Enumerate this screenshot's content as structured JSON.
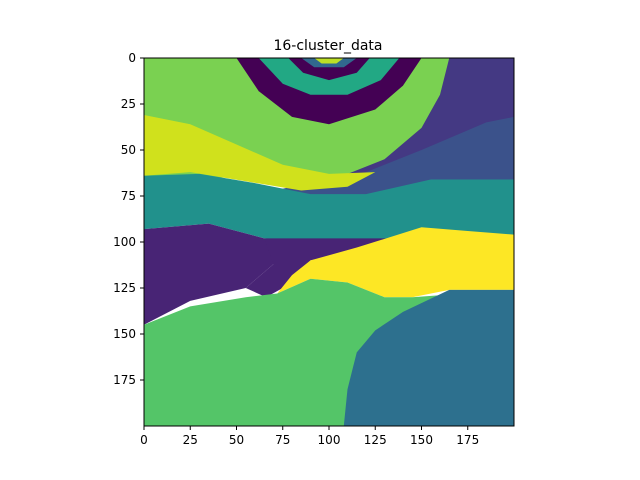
{
  "chart_data": {
    "type": "heatmap",
    "title": "16-cluster_data",
    "xlabel": "",
    "ylabel": "",
    "xlim": [
      0,
      200
    ],
    "ylim": [
      200,
      0
    ],
    "x_ticks": [
      0,
      25,
      50,
      75,
      100,
      125,
      150,
      175
    ],
    "y_ticks": [
      0,
      25,
      50,
      75,
      100,
      125,
      150,
      175
    ],
    "grid": false,
    "colormap": "viridis",
    "regions": [
      {
        "name": "top-light-green",
        "color": "#7ad151",
        "points": [
          [
            0,
            0
          ],
          [
            200,
            0
          ],
          [
            200,
            65
          ],
          [
            0,
            65
          ]
        ]
      },
      {
        "name": "top-right-purple",
        "color": "#443983",
        "points": [
          [
            165,
            0
          ],
          [
            200,
            0
          ],
          [
            200,
            65
          ],
          [
            105,
            65
          ],
          [
            130,
            55
          ],
          [
            150,
            38
          ],
          [
            160,
            20
          ]
        ]
      },
      {
        "name": "top-right-blue",
        "color": "#3b528b",
        "points": [
          [
            200,
            32
          ],
          [
            200,
            68
          ],
          [
            165,
            68
          ],
          [
            100,
            80
          ],
          [
            70,
            72
          ],
          [
            120,
            62
          ],
          [
            150,
            50
          ],
          [
            185,
            35
          ]
        ]
      },
      {
        "name": "ring-outer-purple",
        "color": "#440154",
        "points": [
          [
            50,
            0
          ],
          [
            150,
            0
          ],
          [
            140,
            15
          ],
          [
            125,
            28
          ],
          [
            100,
            36
          ],
          [
            80,
            32
          ],
          [
            62,
            18
          ]
        ]
      },
      {
        "name": "ring-green",
        "color": "#22a884",
        "points": [
          [
            62,
            0
          ],
          [
            138,
            0
          ],
          [
            128,
            12
          ],
          [
            110,
            20
          ],
          [
            90,
            20
          ],
          [
            75,
            14
          ]
        ]
      },
      {
        "name": "ring-purple-2",
        "color": "#440154",
        "points": [
          [
            78,
            0
          ],
          [
            122,
            0
          ],
          [
            115,
            8
          ],
          [
            100,
            12
          ],
          [
            86,
            8
          ]
        ]
      },
      {
        "name": "ring-blue",
        "color": "#31688e",
        "points": [
          [
            85,
            0
          ],
          [
            115,
            0
          ],
          [
            108,
            5
          ],
          [
            92,
            5
          ]
        ]
      },
      {
        "name": "ring-center-yellowgreen",
        "color": "#bddf26",
        "points": [
          [
            92,
            0
          ],
          [
            108,
            0
          ],
          [
            104,
            3
          ],
          [
            96,
            3
          ]
        ]
      },
      {
        "name": "left-yellow",
        "color": "#d0e11c",
        "points": [
          [
            0,
            31
          ],
          [
            25,
            36
          ],
          [
            50,
            47
          ],
          [
            75,
            58
          ],
          [
            100,
            63
          ],
          [
            125,
            62
          ],
          [
            110,
            70
          ],
          [
            85,
            72
          ],
          [
            55,
            67
          ],
          [
            25,
            62
          ],
          [
            0,
            64
          ]
        ]
      },
      {
        "name": "mid-teal",
        "color": "#21918c",
        "points": [
          [
            0,
            64
          ],
          [
            30,
            63
          ],
          [
            60,
            68
          ],
          [
            90,
            74
          ],
          [
            120,
            74
          ],
          [
            155,
            66
          ],
          [
            200,
            66
          ],
          [
            200,
            97
          ],
          [
            155,
            97
          ],
          [
            125,
            101
          ],
          [
            65,
            98
          ],
          [
            35,
            90
          ],
          [
            0,
            93
          ]
        ]
      },
      {
        "name": "mid-purple",
        "color": "#482475",
        "points": [
          [
            0,
            93
          ],
          [
            35,
            90
          ],
          [
            65,
            98
          ],
          [
            85,
            103
          ],
          [
            70,
            112
          ],
          [
            55,
            125
          ],
          [
            25,
            132
          ],
          [
            0,
            145
          ]
        ]
      },
      {
        "name": "mid-purple-2",
        "color": "#482475",
        "points": [
          [
            65,
            98
          ],
          [
            150,
            98
          ],
          [
            115,
            105
          ],
          [
            90,
            110
          ],
          [
            75,
            125
          ],
          [
            66,
            130
          ],
          [
            55,
            125
          ],
          [
            70,
            112
          ]
        ]
      },
      {
        "name": "mid-yellow",
        "color": "#fde725",
        "points": [
          [
            90,
            110
          ],
          [
            115,
            103
          ],
          [
            150,
            92
          ],
          [
            175,
            94
          ],
          [
            200,
            96
          ],
          [
            200,
            126
          ],
          [
            165,
            126
          ],
          [
            145,
            130
          ],
          [
            130,
            130
          ],
          [
            110,
            122
          ],
          [
            90,
            120
          ],
          [
            72,
            128
          ],
          [
            80,
            118
          ]
        ]
      },
      {
        "name": "bottom-green",
        "color": "#54c568",
        "points": [
          [
            0,
            145
          ],
          [
            25,
            135
          ],
          [
            55,
            130
          ],
          [
            72,
            128
          ],
          [
            90,
            120
          ],
          [
            110,
            122
          ],
          [
            130,
            130
          ],
          [
            145,
            130
          ],
          [
            200,
            126
          ],
          [
            200,
            200
          ],
          [
            0,
            200
          ]
        ]
      },
      {
        "name": "bottom-right-blue",
        "color": "#2d708e",
        "points": [
          [
            108,
            200
          ],
          [
            110,
            180
          ],
          [
            115,
            160
          ],
          [
            125,
            148
          ],
          [
            140,
            138
          ],
          [
            165,
            126
          ],
          [
            200,
            126
          ],
          [
            200,
            200
          ]
        ]
      }
    ]
  }
}
